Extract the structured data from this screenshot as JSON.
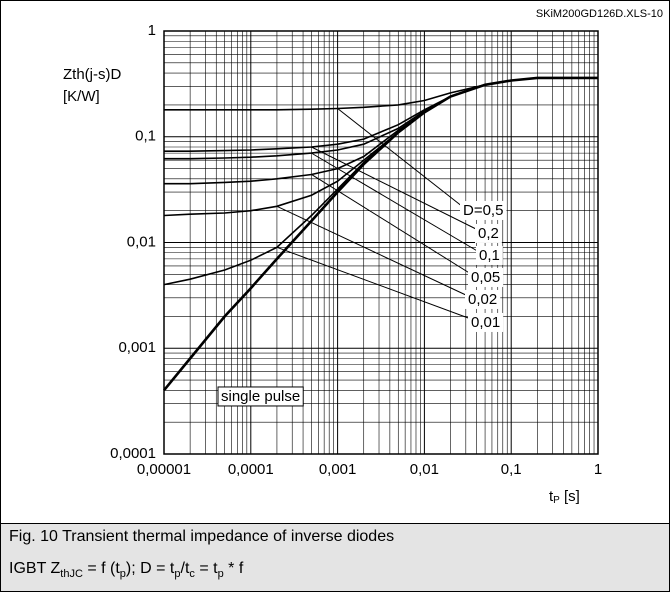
{
  "corner_label": "SKiM200GD126D.XLS-10",
  "chart_data": {
    "type": "line",
    "log_x": true,
    "log_y": true,
    "grid": true,
    "minor_grid": true,
    "ylabel": [
      "Zth(j-s)D",
      "[K/W]"
    ],
    "xlabel": [
      {
        "text": "t"
      },
      {
        "text": "P",
        "sub": true
      },
      {
        "text": " [s]"
      }
    ],
    "x": [
      1e-05,
      2e-05,
      5e-05,
      0.0001,
      0.0002,
      0.0005,
      0.001,
      0.002,
      0.005,
      0.01,
      0.02,
      0.05,
      0.1,
      0.2,
      0.5,
      1
    ],
    "xlim": [
      1e-05,
      1
    ],
    "ylim": [
      0.0001,
      1
    ],
    "xticks": [
      {
        "value": 1e-05,
        "label": "0,00001"
      },
      {
        "value": 0.0001,
        "label": "0,0001"
      },
      {
        "value": 0.001,
        "label": "0,001"
      },
      {
        "value": 0.01,
        "label": "0,01"
      },
      {
        "value": 0.1,
        "label": "0,1"
      },
      1
    ],
    "yticks": [
      {
        "value": 0.0001,
        "label": "0,0001"
      },
      {
        "value": 0.001,
        "label": "0,001"
      },
      {
        "value": 0.01,
        "label": "0,01"
      },
      {
        "value": 0.1,
        "label": "0,1"
      },
      1
    ],
    "series": [
      {
        "name": "single pulse",
        "color": "#000000",
        "values": [
          0.0004,
          0.0008,
          0.002,
          0.0037,
          0.007,
          0.016,
          0.03,
          0.055,
          0.11,
          0.17,
          0.24,
          0.31,
          0.34,
          0.36,
          0.36,
          0.36
        ]
      },
      {
        "name": "D=0,5",
        "color": "#000000",
        "values": [
          0.18,
          0.18,
          0.18,
          0.18,
          0.18,
          0.182,
          0.185,
          0.19,
          0.2,
          0.22,
          0.26,
          0.31,
          0.34,
          0.36,
          0.36,
          0.36
        ]
      },
      {
        "name": "0,2",
        "color": "#000000",
        "values": [
          0.073,
          0.073,
          0.074,
          0.075,
          0.077,
          0.08,
          0.085,
          0.095,
          0.13,
          0.18,
          0.24,
          0.31,
          0.34,
          0.36,
          0.36,
          0.36
        ]
      },
      {
        "name": "0,1",
        "color": "#000000",
        "values": [
          0.062,
          0.062,
          0.063,
          0.064,
          0.066,
          0.07,
          0.075,
          0.085,
          0.12,
          0.175,
          0.24,
          0.31,
          0.34,
          0.36,
          0.36,
          0.36
        ]
      },
      {
        "name": "0,05",
        "color": "#000000",
        "values": [
          0.036,
          0.036,
          0.037,
          0.038,
          0.04,
          0.044,
          0.05,
          0.065,
          0.115,
          0.17,
          0.24,
          0.31,
          0.34,
          0.36,
          0.36,
          0.36
        ]
      },
      {
        "name": "0,02",
        "color": "#000000",
        "values": [
          0.018,
          0.0185,
          0.019,
          0.02,
          0.022,
          0.028,
          0.038,
          0.06,
          0.11,
          0.17,
          0.24,
          0.31,
          0.34,
          0.36,
          0.36,
          0.36
        ]
      },
      {
        "name": "0,01",
        "color": "#000000",
        "values": [
          0.004,
          0.0045,
          0.0055,
          0.0068,
          0.009,
          0.018,
          0.032,
          0.057,
          0.11,
          0.17,
          0.24,
          0.31,
          0.34,
          0.36,
          0.36,
          0.36
        ]
      }
    ]
  },
  "caption": {
    "title": "Fig. 10 Transient thermal impedance of inverse diodes",
    "formula": [
      {
        "text": "IGBT Z"
      },
      {
        "text": "thJC",
        "sub": true
      },
      {
        "text": " = f (t"
      },
      {
        "text": "p",
        "sub": true
      },
      {
        "text": "); D = t"
      },
      {
        "text": "p",
        "sub": true
      },
      {
        "text": "/t"
      },
      {
        "text": "c",
        "sub": true
      },
      {
        "text": " = t"
      },
      {
        "text": "p",
        "sub": true
      },
      {
        "text": " * f"
      }
    ]
  }
}
